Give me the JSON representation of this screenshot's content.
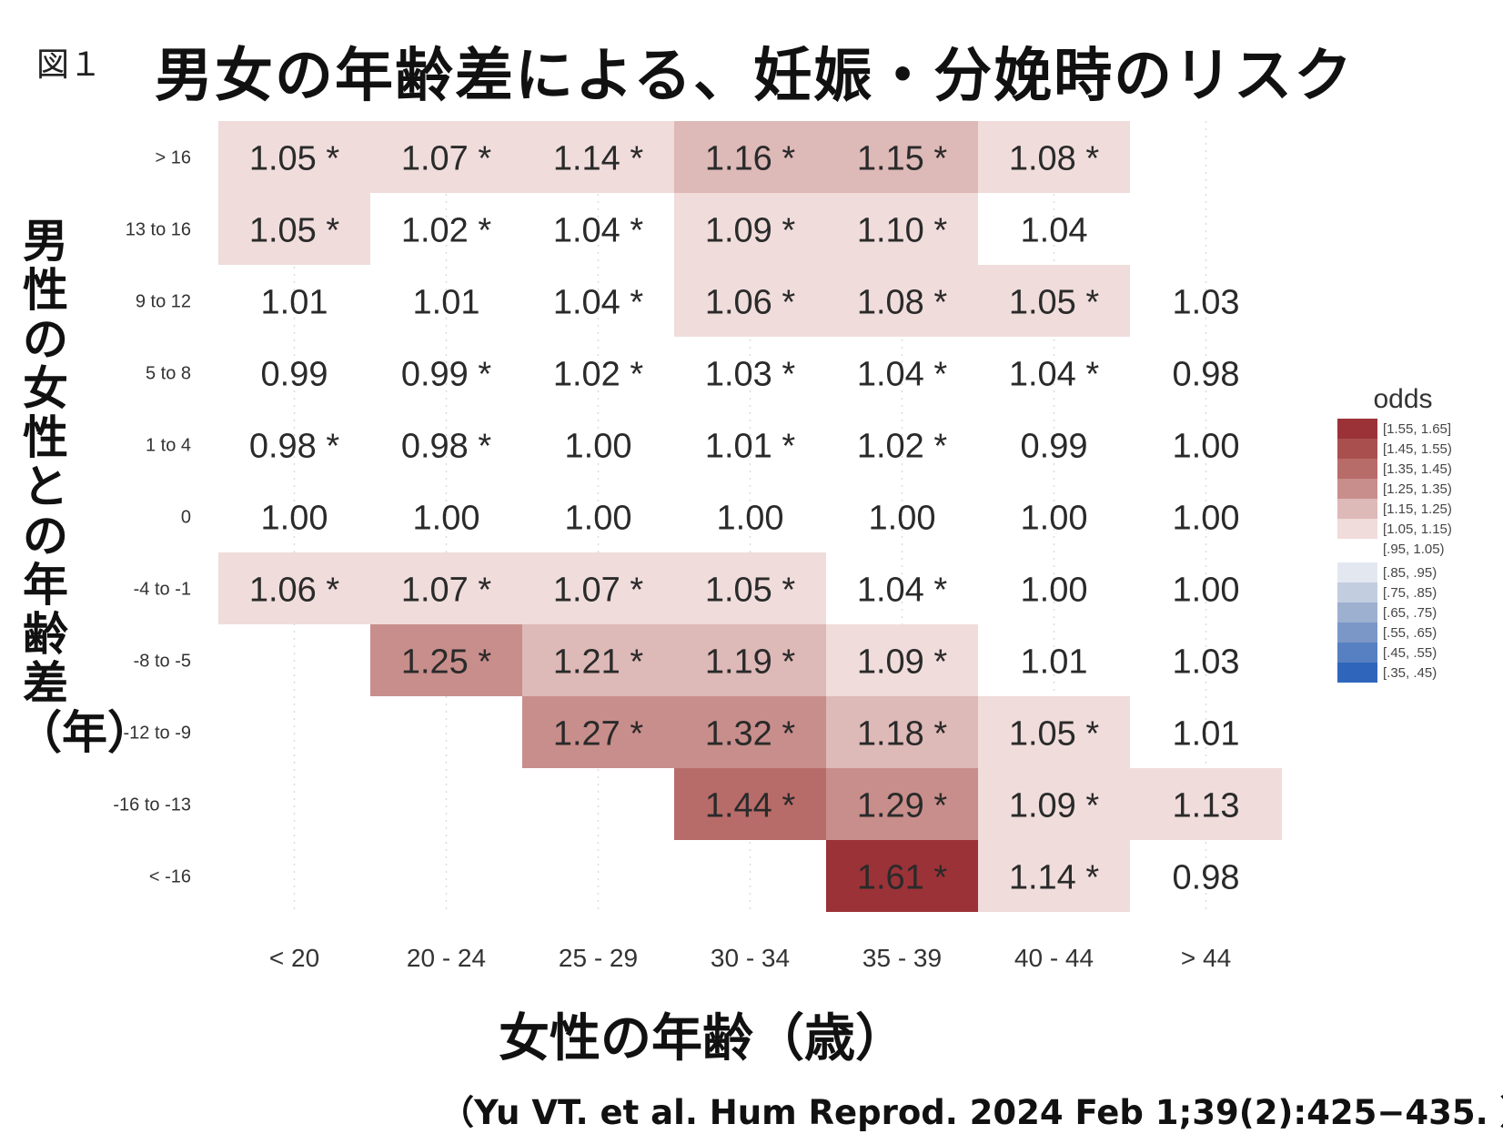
{
  "figure_label": "図１",
  "title": "男女の年齢差による、妊娠・分娩時のリスク",
  "y_axis_title": "男性の女性との年齢差（年）",
  "x_axis_title": "女性の年齢（歳）",
  "citation": "（Yu VT. et al. Hum Reprod. 2024 Feb 1;39(2):425−435. ）",
  "chart_data": {
    "type": "heatmap",
    "x_categories": [
      "< 20",
      "20 - 24",
      "25 - 29",
      "30 - 34",
      "35 - 39",
      "40 - 44",
      "> 44"
    ],
    "y_categories": [
      "> 16",
      "13 to 16",
      "9 to 12",
      "5 to 8",
      "1 to 4",
      "0",
      "-4 to -1",
      "-8 to -5",
      "-12 to -9",
      "-16 to -13",
      "< -16"
    ],
    "cells": [
      [
        "1.05 *",
        "1.07 *",
        "1.14 *",
        "1.16 *",
        "1.15 *",
        "1.08 *",
        ""
      ],
      [
        "1.05 *",
        "1.02 *",
        "1.04 *",
        "1.09 *",
        "1.10 *",
        "1.04",
        ""
      ],
      [
        "1.01",
        "1.01",
        "1.04 *",
        "1.06 *",
        "1.08 *",
        "1.05 *",
        "1.03"
      ],
      [
        "0.99",
        "0.99 *",
        "1.02 *",
        "1.03 *",
        "1.04 *",
        "1.04 *",
        "0.98"
      ],
      [
        "0.98 *",
        "0.98 *",
        "1.00",
        "1.01 *",
        "1.02 *",
        "0.99",
        "1.00"
      ],
      [
        "1.00",
        "1.00",
        "1.00",
        "1.00",
        "1.00",
        "1.00",
        "1.00"
      ],
      [
        "1.06 *",
        "1.07 *",
        "1.07 *",
        "1.05 *",
        "1.04 *",
        "1.00",
        "1.00"
      ],
      [
        "",
        "1.25 *",
        "1.21 *",
        "1.19 *",
        "1.09 *",
        "1.01",
        "1.03"
      ],
      [
        "",
        "",
        "1.27 *",
        "1.32 *",
        "1.18 *",
        "1.05 *",
        "1.01"
      ],
      [
        "",
        "",
        "",
        "1.44 *",
        "1.29 *",
        "1.09 *",
        "1.13"
      ],
      [
        "",
        "",
        "",
        "",
        "1.61 *",
        "1.14 *",
        "0.98"
      ]
    ],
    "legend": {
      "title": "odds",
      "bins": [
        {
          "label": "[1.55, 1.65]",
          "color": "#9b3237"
        },
        {
          "label": "[1.45, 1.55)",
          "color": "#a9504f"
        },
        {
          "label": "[1.35, 1.45)",
          "color": "#b86c69"
        },
        {
          "label": "[1.25, 1.35)",
          "color": "#c88e8b"
        },
        {
          "label": "[1.15, 1.25)",
          "color": "#ddb9b7"
        },
        {
          "label": "[1.05, 1.15)",
          "color": "#efdcdb"
        },
        {
          "label": "[.95, 1.05)",
          "color": "#ffffff"
        },
        {
          "label": "[.85, .95)",
          "color": "#e3e8f0"
        },
        {
          "label": "[.75, .85)",
          "color": "#c2cde0"
        },
        {
          "label": "[.65, .75)",
          "color": "#9db0d0"
        },
        {
          "label": "[.55, .65)",
          "color": "#7b97c7"
        },
        {
          "label": "[.45, .55)",
          "color": "#5680c1"
        },
        {
          "label": "[.35, .45)",
          "color": "#2f66bc"
        }
      ]
    }
  }
}
